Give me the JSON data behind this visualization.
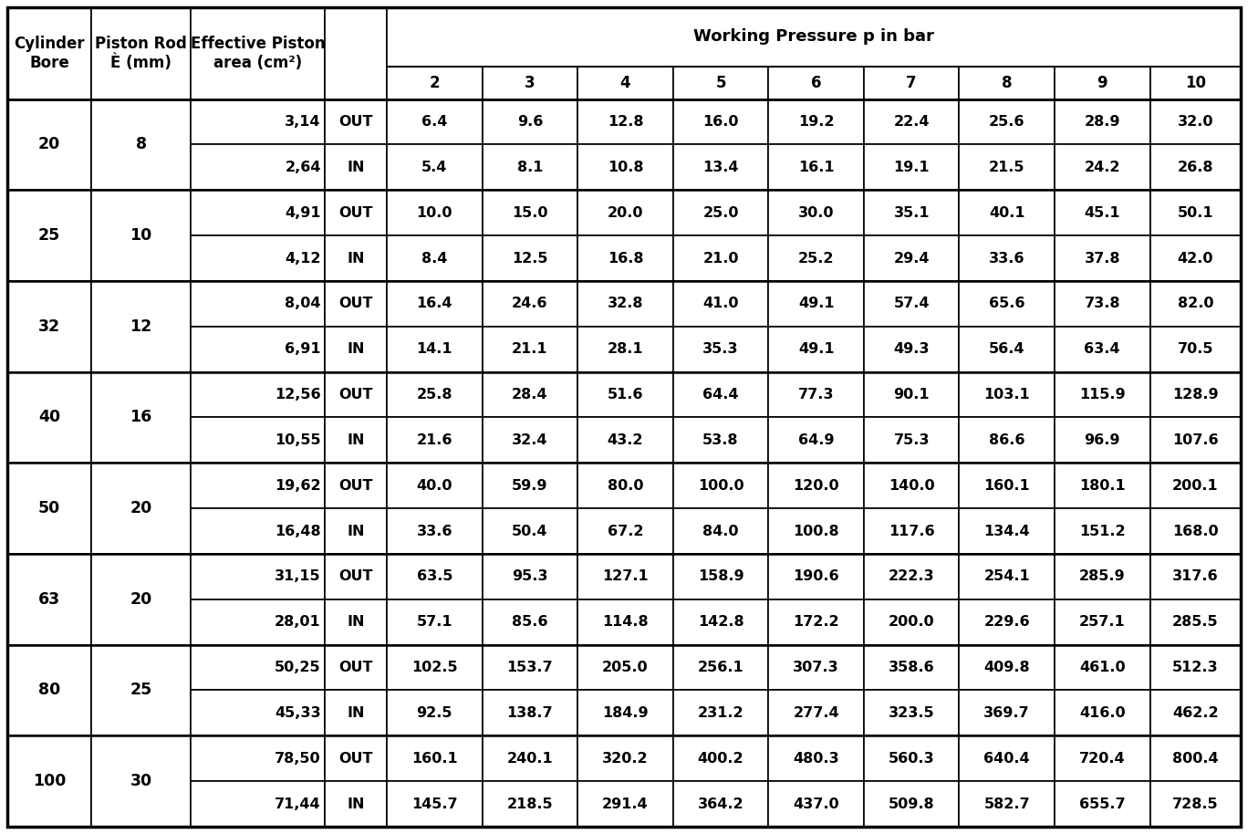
{
  "col_header1": [
    "Cylinder\nBore",
    "Piston Rod\nÈ (mm)",
    "Effective Piston\narea (cm²)",
    "",
    "Working Pressure p in bar"
  ],
  "col_header2_pressure": [
    "2",
    "3",
    "4",
    "5",
    "6",
    "7",
    "8",
    "9",
    "10"
  ],
  "rows": [
    {
      "bore": "20",
      "rod": "8",
      "area": "3,14",
      "dir": "OUT",
      "vals": [
        "6.4",
        "9.6",
        "12.8",
        "16.0",
        "19.2",
        "22.4",
        "25.6",
        "28.9",
        "32.0"
      ]
    },
    {
      "bore": "",
      "rod": "",
      "area": "2,64",
      "dir": "IN",
      "vals": [
        "5.4",
        "8.1",
        "10.8",
        "13.4",
        "16.1",
        "19.1",
        "21.5",
        "24.2",
        "26.8"
      ]
    },
    {
      "bore": "25",
      "rod": "10",
      "area": "4,91",
      "dir": "OUT",
      "vals": [
        "10.0",
        "15.0",
        "20.0",
        "25.0",
        "30.0",
        "35.1",
        "40.1",
        "45.1",
        "50.1"
      ]
    },
    {
      "bore": "",
      "rod": "",
      "area": "4,12",
      "dir": "IN",
      "vals": [
        "8.4",
        "12.5",
        "16.8",
        "21.0",
        "25.2",
        "29.4",
        "33.6",
        "37.8",
        "42.0"
      ]
    },
    {
      "bore": "32",
      "rod": "12",
      "area": "8,04",
      "dir": "OUT",
      "vals": [
        "16.4",
        "24.6",
        "32.8",
        "41.0",
        "49.1",
        "57.4",
        "65.6",
        "73.8",
        "82.0"
      ]
    },
    {
      "bore": "",
      "rod": "",
      "area": "6,91",
      "dir": "IN",
      "vals": [
        "14.1",
        "21.1",
        "28.1",
        "35.3",
        "49.1",
        "49.3",
        "56.4",
        "63.4",
        "70.5"
      ]
    },
    {
      "bore": "40",
      "rod": "16",
      "area": "12,56",
      "dir": "OUT",
      "vals": [
        "25.8",
        "28.4",
        "51.6",
        "64.4",
        "77.3",
        "90.1",
        "103.1",
        "115.9",
        "128.9"
      ]
    },
    {
      "bore": "",
      "rod": "",
      "area": "10,55",
      "dir": "IN",
      "vals": [
        "21.6",
        "32.4",
        "43.2",
        "53.8",
        "64.9",
        "75.3",
        "86.6",
        "96.9",
        "107.6"
      ]
    },
    {
      "bore": "50",
      "rod": "20",
      "area": "19,62",
      "dir": "OUT",
      "vals": [
        "40.0",
        "59.9",
        "80.0",
        "100.0",
        "120.0",
        "140.0",
        "160.1",
        "180.1",
        "200.1"
      ]
    },
    {
      "bore": "",
      "rod": "",
      "area": "16,48",
      "dir": "IN",
      "vals": [
        "33.6",
        "50.4",
        "67.2",
        "84.0",
        "100.8",
        "117.6",
        "134.4",
        "151.2",
        "168.0"
      ]
    },
    {
      "bore": "63",
      "rod": "20",
      "area": "31,15",
      "dir": "OUT",
      "vals": [
        "63.5",
        "95.3",
        "127.1",
        "158.9",
        "190.6",
        "222.3",
        "254.1",
        "285.9",
        "317.6"
      ]
    },
    {
      "bore": "",
      "rod": "",
      "area": "28,01",
      "dir": "IN",
      "vals": [
        "57.1",
        "85.6",
        "114.8",
        "142.8",
        "172.2",
        "200.0",
        "229.6",
        "257.1",
        "285.5"
      ]
    },
    {
      "bore": "80",
      "rod": "25",
      "area": "50,25",
      "dir": "OUT",
      "vals": [
        "102.5",
        "153.7",
        "205.0",
        "256.1",
        "307.3",
        "358.6",
        "409.8",
        "461.0",
        "512.3"
      ]
    },
    {
      "bore": "",
      "rod": "",
      "area": "45,33",
      "dir": "IN",
      "vals": [
        "92.5",
        "138.7",
        "184.9",
        "231.2",
        "277.4",
        "323.5",
        "369.7",
        "416.0",
        "462.2"
      ]
    },
    {
      "bore": "100",
      "rod": "30",
      "area": "78,50",
      "dir": "OUT",
      "vals": [
        "160.1",
        "240.1",
        "320.2",
        "400.2",
        "480.3",
        "560.3",
        "640.4",
        "720.4",
        "800.4"
      ]
    },
    {
      "bore": "",
      "rod": "",
      "area": "71,44",
      "dir": "IN",
      "vals": [
        "145.7",
        "218.5",
        "291.4",
        "364.2",
        "437.0",
        "509.8",
        "582.7",
        "655.7",
        "728.5"
      ]
    }
  ],
  "bg_color": "#ffffff",
  "border_color": "#000000",
  "font_size": 11.5,
  "header_font_size": 12
}
